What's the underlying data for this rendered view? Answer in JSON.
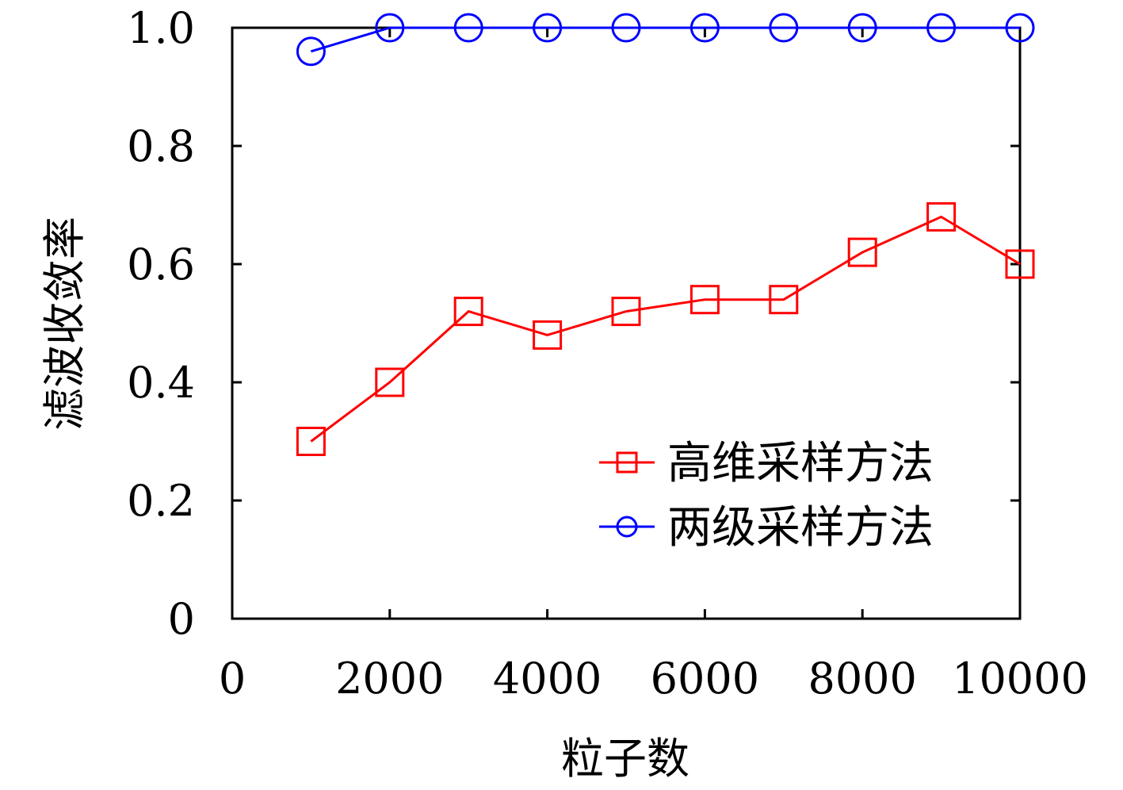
{
  "chart_data": {
    "type": "line",
    "title": "",
    "xlabel": "粒子数",
    "ylabel": "滤波收敛率",
    "xlim": [
      0,
      10000
    ],
    "ylim": [
      0,
      1.0
    ],
    "x_ticks": [
      0,
      2000,
      4000,
      6000,
      8000,
      10000
    ],
    "x_tick_labels": [
      "0",
      "2000",
      "4000",
      "6000",
      "8000",
      "10000"
    ],
    "y_ticks": [
      0,
      0.2,
      0.4,
      0.6,
      0.8,
      1.0
    ],
    "y_tick_labels": [
      "0",
      "0.2",
      "0.4",
      "0.6",
      "0.8",
      "1.0"
    ],
    "x": [
      1000,
      2000,
      3000,
      4000,
      5000,
      6000,
      7000,
      8000,
      9000,
      10000
    ],
    "series": [
      {
        "name": "高维采样方法",
        "color": "#ff0000",
        "marker": "square",
        "values": [
          0.3,
          0.4,
          0.52,
          0.48,
          0.52,
          0.54,
          0.54,
          0.62,
          0.68,
          0.6
        ]
      },
      {
        "name": "两级采样方法",
        "color": "#0000ff",
        "marker": "circle",
        "values": [
          0.96,
          1.0,
          1.0,
          1.0,
          1.0,
          1.0,
          1.0,
          1.0,
          1.0,
          1.0
        ]
      }
    ],
    "grid": false,
    "legend_position": "bottom-right"
  }
}
